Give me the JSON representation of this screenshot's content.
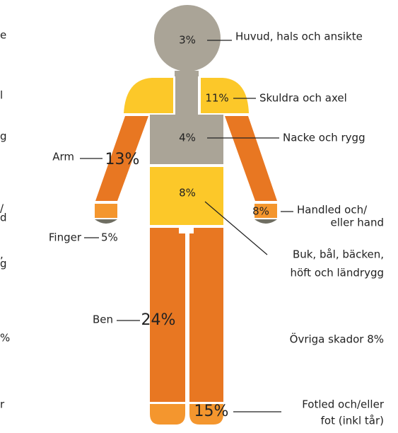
{
  "parts": [
    {
      "value": "3%",
      "label": "Huvud, hals och ansikte"
    },
    {
      "value": "11%",
      "label": "Skuldra och axel"
    },
    {
      "value": "4%",
      "label": "Nacke och rygg"
    },
    {
      "value": "13%",
      "label": "Arm"
    },
    {
      "value": "8%",
      "label": [
        "Handled och/",
        "eller hand"
      ]
    },
    {
      "value": "8%",
      "label": [
        "Buk, bål, bäcken,",
        "höft och ländrygg"
      ]
    },
    {
      "value": "5%",
      "label": "Finger"
    },
    {
      "value": "24%",
      "label": "Ben"
    },
    {
      "label": "Övriga skador 8%"
    },
    {
      "value": "15%",
      "label": [
        "Fotled och/eller",
        "fot (inkl tår)"
      ]
    }
  ],
  "edge_fragments": [
    "e",
    "l",
    "g",
    "/",
    "d",
    ",",
    "g",
    "%",
    "r"
  ]
}
